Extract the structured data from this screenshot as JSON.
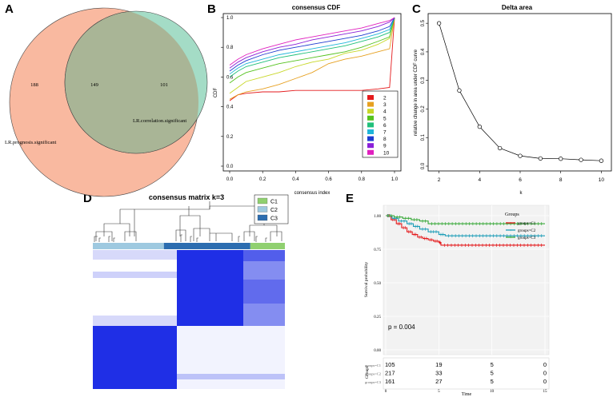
{
  "panels": {
    "a": {
      "letter": "A"
    },
    "b": {
      "letter": "B"
    },
    "c": {
      "letter": "C"
    },
    "d": {
      "letter": "D"
    },
    "e": {
      "letter": "E"
    }
  },
  "colors": {
    "venn_left": "#F9B9A0",
    "venn_right": "#A4DCC6",
    "venn_overlap": "#A9B596",
    "heat_blue": "#1f2fe6",
    "c1": "#90D070",
    "c2": "#9EC9E0",
    "c3": "#2C6DB0",
    "km_c1": "#E41A1C",
    "km_c2": "#1C9DB7",
    "km_c3": "#39A93A"
  },
  "chart_data": [
    {
      "type": "venn",
      "sets": [
        {
          "name": "LR.prognosis.significant",
          "only": 188
        },
        {
          "name": "LR.correlation.significant",
          "only": 101
        }
      ],
      "intersection": 149
    },
    {
      "type": "line",
      "title": "consensus CDF",
      "xlabel": "consensus index",
      "ylabel": "CDF",
      "xlim": [
        0,
        1
      ],
      "ylim": [
        0,
        1
      ],
      "xticks": [
        "0.0",
        "0.2",
        "0.4",
        "0.6",
        "0.8",
        "1.0"
      ],
      "yticks": [
        "0.0",
        "0.2",
        "0.4",
        "0.6",
        "0.8",
        "1.0"
      ],
      "x": [
        0,
        0.05,
        0.1,
        0.2,
        0.3,
        0.4,
        0.5,
        0.6,
        0.7,
        0.8,
        0.9,
        0.97,
        1.0
      ],
      "series": [
        {
          "name": "2",
          "color": "#E41A1C",
          "values": [
            0.44,
            0.48,
            0.49,
            0.5,
            0.5,
            0.51,
            0.51,
            0.51,
            0.51,
            0.51,
            0.52,
            0.53,
            1.0
          ]
        },
        {
          "name": "3",
          "color": "#E6A020",
          "values": [
            0.45,
            0.48,
            0.5,
            0.52,
            0.55,
            0.59,
            0.63,
            0.69,
            0.72,
            0.74,
            0.77,
            0.79,
            1.0
          ]
        },
        {
          "name": "4",
          "color": "#C8D728",
          "values": [
            0.49,
            0.53,
            0.57,
            0.6,
            0.63,
            0.67,
            0.7,
            0.72,
            0.76,
            0.78,
            0.82,
            0.86,
            1.0
          ]
        },
        {
          "name": "5",
          "color": "#55C21E",
          "values": [
            0.56,
            0.6,
            0.63,
            0.66,
            0.69,
            0.71,
            0.73,
            0.75,
            0.77,
            0.8,
            0.84,
            0.87,
            1.0
          ]
        },
        {
          "name": "6",
          "color": "#20C07A",
          "values": [
            0.6,
            0.64,
            0.67,
            0.7,
            0.73,
            0.75,
            0.77,
            0.79,
            0.81,
            0.84,
            0.87,
            0.9,
            1.0
          ]
        },
        {
          "name": "7",
          "color": "#1FB5D9",
          "values": [
            0.62,
            0.66,
            0.69,
            0.72,
            0.75,
            0.77,
            0.79,
            0.81,
            0.83,
            0.86,
            0.89,
            0.92,
            1.0
          ]
        },
        {
          "name": "8",
          "color": "#1F3CD0",
          "values": [
            0.64,
            0.68,
            0.71,
            0.75,
            0.78,
            0.8,
            0.82,
            0.84,
            0.86,
            0.88,
            0.91,
            0.94,
            1.0
          ]
        },
        {
          "name": "9",
          "color": "#8A1FD8",
          "values": [
            0.66,
            0.7,
            0.73,
            0.77,
            0.8,
            0.82,
            0.85,
            0.87,
            0.89,
            0.91,
            0.94,
            0.97,
            1.0
          ]
        },
        {
          "name": "10",
          "color": "#E01FBE",
          "values": [
            0.68,
            0.72,
            0.75,
            0.79,
            0.82,
            0.85,
            0.87,
            0.89,
            0.91,
            0.93,
            0.96,
            0.98,
            1.0
          ]
        }
      ]
    },
    {
      "type": "line",
      "title": "Delta area",
      "xlabel": "k",
      "ylabel": "relative change in area under CDF curve",
      "xlim": [
        1.7,
        10.3
      ],
      "ylim": [
        0,
        0.52
      ],
      "xticks": [
        "2",
        "4",
        "6",
        "8",
        "10"
      ],
      "yticks": [
        "0.0",
        "0.1",
        "0.2",
        "0.3",
        "0.4",
        "0.5"
      ],
      "x": [
        2,
        3,
        4,
        5,
        6,
        7,
        8,
        9,
        10
      ],
      "values": [
        0.5,
        0.265,
        0.138,
        0.063,
        0.036,
        0.027,
        0.026,
        0.022,
        0.019
      ]
    },
    {
      "type": "heatmap",
      "title": "consensus matrix k=3",
      "legend": [
        "C1",
        "C2",
        "C3"
      ],
      "column_groups": [
        {
          "cluster": "C2",
          "fraction": 0.37
        },
        {
          "cluster": "C3",
          "fraction": 0.45
        },
        {
          "cluster": "C1",
          "fraction": 0.18
        }
      ]
    },
    {
      "type": "line",
      "subtype": "kaplan-meier",
      "xlabel": "Time",
      "ylabel": "Survival probability",
      "legend_title": "Groups",
      "xlim": [
        0,
        15
      ],
      "ylim": [
        0,
        1
      ],
      "xticks": [
        "0",
        "5",
        "10",
        "15"
      ],
      "yticks": [
        "0.00",
        "0.25",
        "0.50",
        "0.75",
        "1.00"
      ],
      "pvalue": "p = 0.004",
      "series": [
        {
          "name": "groups=C1",
          "color": "#E41A1C",
          "time": [
            0,
            0.5,
            1,
            1.5,
            2,
            2.5,
            3,
            3.5,
            4,
            4.5,
            5,
            5.2,
            15
          ],
          "surv": [
            1.0,
            0.97,
            0.94,
            0.91,
            0.88,
            0.86,
            0.84,
            0.83,
            0.82,
            0.81,
            0.8,
            0.78,
            0.78
          ]
        },
        {
          "name": "groups=C2",
          "color": "#1C9DB7",
          "time": [
            0,
            0.6,
            1.2,
            2,
            2.6,
            3.2,
            4,
            5,
            5.6,
            15
          ],
          "surv": [
            1.0,
            0.98,
            0.96,
            0.94,
            0.92,
            0.9,
            0.88,
            0.86,
            0.85,
            0.85
          ]
        },
        {
          "name": "groups=C3",
          "color": "#39A93A",
          "time": [
            0,
            0.8,
            1.6,
            2.4,
            3.2,
            4,
            15
          ],
          "surv": [
            1.0,
            0.99,
            0.98,
            0.97,
            0.96,
            0.94,
            0.94
          ]
        }
      ],
      "risk_table": {
        "label": "Groups",
        "time_points": [
          "0",
          "5",
          "10",
          "15"
        ],
        "rows": [
          {
            "group": "groups=C1",
            "counts": [
              "105",
              "19",
              "5",
              "0"
            ]
          },
          {
            "group": "groups=C2",
            "counts": [
              "217",
              "33",
              "5",
              "0"
            ]
          },
          {
            "group": "groups=C3",
            "counts": [
              "161",
              "27",
              "5",
              "0"
            ]
          }
        ]
      }
    }
  ]
}
